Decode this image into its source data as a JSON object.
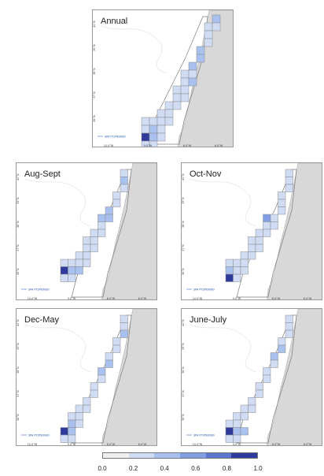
{
  "colors": {
    "land": "#d8d8d8",
    "sea": "#ffffff",
    "grid_stroke": "#8a8a8a",
    "empty_cell": "#eeeeee",
    "bathy_line": "#e6e6e6",
    "legend_line": "#6a8fd6",
    "bins": [
      "#efefef",
      "#cfdcf4",
      "#a9c1ee",
      "#7f9ee4",
      "#5a76cf",
      "#2e3a9c"
    ]
  },
  "axes": {
    "y_ticks": [
      "40°N",
      "39°N",
      "38°N",
      "37°N",
      "36°N"
    ],
    "x_ticks": [
      "10.0°W",
      "9.0°W",
      "8.0°W",
      "6.0°W"
    ]
  },
  "legend_label": "SPA PTZPE0080",
  "colorbar": {
    "ticks": [
      "0.0",
      "0.2",
      "0.4",
      "0.6",
      "0.8",
      "1.0"
    ]
  },
  "panels": [
    {
      "title": "Annual",
      "cells": [
        [
          13,
          0,
          0.3
        ],
        [
          12,
          1,
          0.2
        ],
        [
          13,
          1,
          0.2
        ],
        [
          12,
          2,
          0.2
        ],
        [
          12,
          3,
          0.2
        ],
        [
          11,
          4,
          0.3
        ],
        [
          11,
          5,
          0.3
        ],
        [
          10,
          6,
          0.3
        ],
        [
          9,
          7,
          0.1
        ],
        [
          10,
          7,
          0.2
        ],
        [
          9,
          8,
          0.1
        ],
        [
          10,
          8,
          0.3
        ],
        [
          8,
          9,
          0.1
        ],
        [
          9,
          9,
          0.2
        ],
        [
          8,
          10,
          0.1
        ],
        [
          9,
          10,
          0.1
        ],
        [
          7,
          11,
          0.1
        ],
        [
          8,
          11,
          0.1
        ],
        [
          6,
          12,
          0.1
        ],
        [
          7,
          12,
          0.1
        ],
        [
          4,
          13,
          0.1
        ],
        [
          5,
          13,
          0.1
        ],
        [
          6,
          13,
          0.1
        ],
        [
          7,
          13,
          0.1
        ],
        [
          4,
          14,
          0.1
        ],
        [
          5,
          14,
          0.3
        ],
        [
          6,
          14,
          0.2
        ],
        [
          4,
          15,
          1.0
        ],
        [
          5,
          15,
          0.3
        ],
        [
          6,
          15,
          0.1
        ],
        [
          4,
          16,
          0.1
        ],
        [
          5,
          16,
          0.2
        ]
      ]
    },
    {
      "title": "Aug-Sept",
      "cells": [
        [
          12,
          0,
          0.1
        ],
        [
          12,
          1,
          0.3
        ],
        [
          12,
          2,
          0.2
        ],
        [
          11,
          3,
          0.1
        ],
        [
          11,
          4,
          0.2
        ],
        [
          10,
          5,
          0.3
        ],
        [
          9,
          6,
          0.3
        ],
        [
          10,
          6,
          0.3
        ],
        [
          9,
          7,
          0.1
        ],
        [
          8,
          8,
          0.1
        ],
        [
          9,
          8,
          0.1
        ],
        [
          7,
          9,
          0.1
        ],
        [
          8,
          9,
          0.1
        ],
        [
          7,
          10,
          0.1
        ],
        [
          8,
          10,
          0.1
        ],
        [
          6,
          11,
          0.1
        ],
        [
          7,
          11,
          0.1
        ],
        [
          4,
          12,
          0.1
        ],
        [
          5,
          12,
          0.1
        ],
        [
          6,
          12,
          0.1
        ],
        [
          7,
          12,
          0.1
        ],
        [
          4,
          13,
          0.9
        ],
        [
          5,
          13,
          0.3
        ],
        [
          6,
          13,
          0.3
        ],
        [
          4,
          14,
          0.1
        ],
        [
          5,
          14,
          0.1
        ]
      ]
    },
    {
      "title": "Oct-Nov",
      "cells": [
        [
          12,
          0,
          0.1
        ],
        [
          12,
          1,
          0.2
        ],
        [
          12,
          2,
          0.2
        ],
        [
          11,
          3,
          0.1
        ],
        [
          11,
          4,
          0.2
        ],
        [
          11,
          5,
          0.2
        ],
        [
          9,
          6,
          0.6
        ],
        [
          10,
          6,
          0.1
        ],
        [
          9,
          7,
          0.1
        ],
        [
          10,
          7,
          0.1
        ],
        [
          8,
          8,
          0.1
        ],
        [
          9,
          8,
          0.1
        ],
        [
          7,
          9,
          0.1
        ],
        [
          8,
          9,
          0.1
        ],
        [
          7,
          10,
          0.1
        ],
        [
          8,
          10,
          0.1
        ],
        [
          6,
          11,
          0.1
        ],
        [
          7,
          11,
          0.1
        ],
        [
          4,
          12,
          0.1
        ],
        [
          5,
          12,
          0.1
        ],
        [
          6,
          12,
          0.1
        ],
        [
          4,
          13,
          0.3
        ],
        [
          5,
          13,
          0.1
        ],
        [
          6,
          13,
          0.1
        ],
        [
          4,
          14,
          1.0
        ],
        [
          5,
          14,
          0.1
        ]
      ]
    },
    {
      "title": "Dec-May",
      "cells": [
        [
          12,
          0,
          0.1
        ],
        [
          12,
          1,
          0.2
        ],
        [
          12,
          2,
          0.3
        ],
        [
          11,
          3,
          0.2
        ],
        [
          11,
          4,
          0.2
        ],
        [
          10,
          5,
          0.2
        ],
        [
          10,
          6,
          0.3
        ],
        [
          9,
          7,
          0.3
        ],
        [
          9,
          8,
          0.1
        ],
        [
          8,
          9,
          0.1
        ],
        [
          8,
          10,
          0.1
        ],
        [
          7,
          11,
          0.1
        ],
        [
          6,
          12,
          0.1
        ],
        [
          7,
          12,
          0.1
        ],
        [
          5,
          13,
          0.1
        ],
        [
          6,
          13,
          0.1
        ],
        [
          5,
          14,
          0.4
        ],
        [
          6,
          14,
          0.1
        ],
        [
          4,
          15,
          0.9
        ],
        [
          5,
          15,
          0.4
        ],
        [
          4,
          16,
          0.1
        ],
        [
          5,
          16,
          0.1
        ]
      ]
    },
    {
      "title": "June-July",
      "cells": [
        [
          12,
          0,
          0.1
        ],
        [
          12,
          1,
          0.2
        ],
        [
          12,
          2,
          0.2
        ],
        [
          11,
          3,
          0.2
        ],
        [
          11,
          4,
          0.3
        ],
        [
          10,
          5,
          0.3
        ],
        [
          10,
          6,
          0.2
        ],
        [
          9,
          7,
          0.2
        ],
        [
          9,
          8,
          0.2
        ],
        [
          8,
          9,
          0.1
        ],
        [
          8,
          10,
          0.1
        ],
        [
          7,
          11,
          0.1
        ],
        [
          6,
          12,
          0.1
        ],
        [
          7,
          12,
          0.1
        ],
        [
          5,
          13,
          0.1
        ],
        [
          6,
          13,
          0.1
        ],
        [
          4,
          14,
          0.1
        ],
        [
          5,
          14,
          0.1
        ],
        [
          4,
          15,
          0.9
        ],
        [
          5,
          15,
          0.3
        ],
        [
          6,
          15,
          0.3
        ],
        [
          4,
          16,
          0.1
        ],
        [
          5,
          16,
          0.1
        ]
      ]
    }
  ]
}
